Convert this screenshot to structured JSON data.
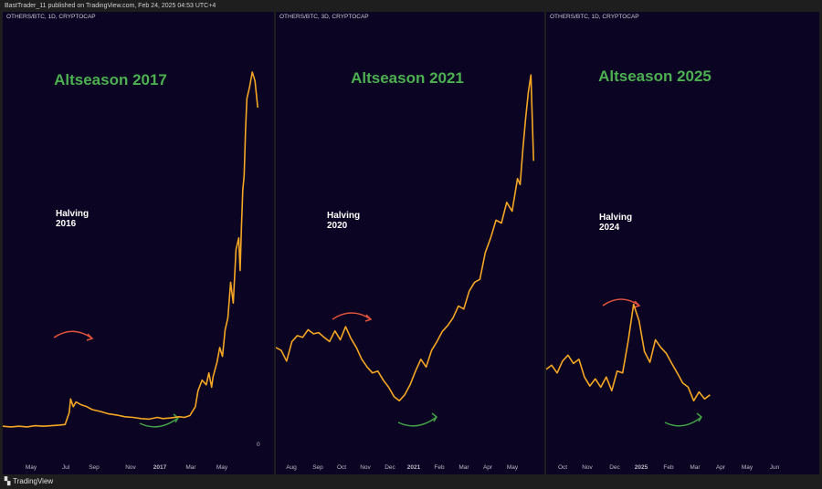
{
  "header": {
    "text": "BastTrader_11 published on TradingView.com, Feb 24, 2025 04:53 UTC+4"
  },
  "footer": {
    "logo_icon": "tradingview-logo-icon",
    "brand": "TradingView"
  },
  "colors": {
    "background": "#0b0523",
    "line": "#f5a623",
    "title": "#4caf50",
    "arrow_up": "#e0533b",
    "arrow_down": "#43a047",
    "text": "#ffffff"
  },
  "chart_data": [
    {
      "type": "line",
      "header": "OTHERS/BTC, 1D, CRYPTOCAP",
      "title": "Altseason 2017",
      "annotation": [
        "Halving",
        "2016"
      ],
      "x_ticks": [
        "May",
        "Jul",
        "Sep",
        "Nov",
        "2017",
        "Mar",
        "May"
      ],
      "y_tick": "0",
      "series": [
        {
          "x": [
            0,
            0.03,
            0.06,
            0.09,
            0.12,
            0.15,
            0.18,
            0.21,
            0.23,
            0.245,
            0.25,
            0.26,
            0.27,
            0.29,
            0.31,
            0.33,
            0.36,
            0.39,
            0.42,
            0.45,
            0.48,
            0.51,
            0.54,
            0.57,
            0.59,
            0.62,
            0.65,
            0.67,
            0.69,
            0.71,
            0.72,
            0.735,
            0.75,
            0.76,
            0.77,
            0.775,
            0.79,
            0.8,
            0.81,
            0.82,
            0.83,
            0.84,
            0.85,
            0.86,
            0.87,
            0.875,
            0.88,
            0.885,
            0.89,
            0.895,
            0.9,
            0.91,
            0.92,
            0.93,
            0.94
          ],
          "y": [
            0.12,
            0.11,
            0.12,
            0.11,
            0.13,
            0.12,
            0.13,
            0.14,
            0.15,
            0.35,
            0.58,
            0.45,
            0.53,
            0.48,
            0.45,
            0.4,
            0.37,
            0.33,
            0.31,
            0.28,
            0.27,
            0.25,
            0.24,
            0.27,
            0.25,
            0.26,
            0.28,
            0.27,
            0.3,
            0.45,
            0.72,
            0.9,
            0.82,
            1.02,
            0.78,
            0.95,
            1.2,
            1.45,
            1.3,
            1.75,
            1.95,
            2.55,
            2.2,
            3.1,
            3.3,
            2.75,
            3.5,
            4.1,
            4.35,
            5.1,
            5.65,
            5.85,
            6.1,
            5.95,
            5.5
          ]
        }
      ],
      "xlim": [
        0,
        1
      ],
      "ylim": [
        0,
        6.5
      ]
    },
    {
      "type": "line",
      "header": "OTHERS/BTC, 3D, CRYPTOCAP",
      "title": "Altseason 2021",
      "annotation": [
        "Halving",
        "2020"
      ],
      "x_ticks": [
        "Aug",
        "Sep",
        "Oct",
        "Nov",
        "Dec",
        "2021",
        "Feb",
        "Mar",
        "Apr",
        "May"
      ],
      "series": [
        {
          "x": [
            0,
            0.02,
            0.04,
            0.06,
            0.08,
            0.1,
            0.12,
            0.14,
            0.16,
            0.18,
            0.2,
            0.22,
            0.24,
            0.26,
            0.28,
            0.3,
            0.32,
            0.34,
            0.36,
            0.38,
            0.4,
            0.42,
            0.44,
            0.46,
            0.48,
            0.5,
            0.52,
            0.54,
            0.56,
            0.58,
            0.6,
            0.62,
            0.64,
            0.66,
            0.68,
            0.7,
            0.72,
            0.74,
            0.76,
            0.78,
            0.8,
            0.82,
            0.84,
            0.86,
            0.88,
            0.9,
            0.91,
            0.92,
            0.93,
            0.94,
            0.95,
            0.96
          ],
          "y": [
            1.45,
            1.4,
            1.22,
            1.55,
            1.65,
            1.62,
            1.75,
            1.68,
            1.7,
            1.62,
            1.55,
            1.73,
            1.58,
            1.8,
            1.6,
            1.45,
            1.25,
            1.12,
            1.02,
            1.05,
            0.9,
            0.78,
            0.62,
            0.55,
            0.65,
            0.82,
            1.05,
            1.25,
            1.12,
            1.4,
            1.55,
            1.72,
            1.82,
            1.95,
            2.15,
            2.1,
            2.4,
            2.55,
            2.6,
            3.05,
            3.3,
            3.6,
            3.55,
            3.9,
            3.75,
            4.3,
            4.2,
            4.8,
            5.3,
            5.75,
            6.05,
            4.6
          ]
        }
      ],
      "xlim": [
        0,
        1
      ],
      "ylim": [
        0,
        6.5
      ]
    },
    {
      "type": "line",
      "header": "OTHERS/BTC, 1D, CRYPTOCAP",
      "title": "Altseason 2025",
      "annotation": [
        "Halving",
        "2024"
      ],
      "x_ticks": [
        "Oct",
        "Nov",
        "Dec",
        "2025",
        "Feb",
        "Mar",
        "Apr",
        "May",
        "Jun"
      ],
      "series": [
        {
          "x": [
            0,
            0.02,
            0.04,
            0.06,
            0.08,
            0.1,
            0.12,
            0.14,
            0.16,
            0.18,
            0.2,
            0.22,
            0.24,
            0.26,
            0.28,
            0.3,
            0.32,
            0.34,
            0.36,
            0.38,
            0.4,
            0.42,
            0.44,
            0.46,
            0.48,
            0.5,
            0.52,
            0.54,
            0.56,
            0.58,
            0.6
          ],
          "y": [
            1.08,
            1.15,
            1.02,
            1.22,
            1.32,
            1.18,
            1.25,
            0.95,
            0.8,
            0.92,
            0.78,
            0.95,
            0.72,
            1.05,
            1.02,
            1.55,
            2.18,
            1.9,
            1.38,
            1.2,
            1.58,
            1.45,
            1.35,
            1.18,
            1.02,
            0.85,
            0.78,
            0.55,
            0.7,
            0.58,
            0.65
          ]
        }
      ],
      "xlim": [
        0,
        1
      ],
      "ylim": [
        0,
        6.5
      ]
    }
  ]
}
